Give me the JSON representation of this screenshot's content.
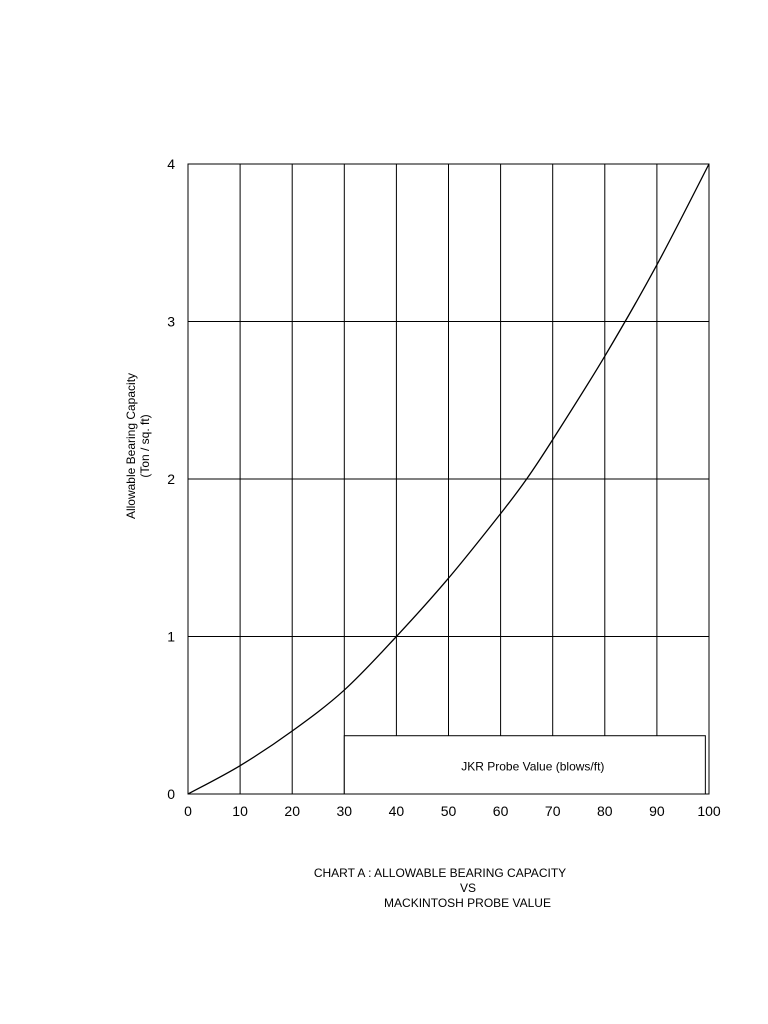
{
  "chart_data": {
    "type": "line",
    "title": "",
    "xlabel": "JKR Probe Value (blows/ft)",
    "ylabel": [
      "Allowable Bearing Capacity",
      "(Ton / sq. ft)"
    ],
    "xlim": [
      0,
      100
    ],
    "ylim": [
      0,
      4
    ],
    "x_ticks": [
      "0",
      "10",
      "20",
      "30",
      "40",
      "50",
      "60",
      "70",
      "80",
      "90",
      "100"
    ],
    "y_ticks": [
      "0",
      "1",
      "2",
      "3",
      "4"
    ],
    "grid": true,
    "series": [
      {
        "x": [
          0,
          10,
          20,
          30,
          40,
          50,
          60,
          65,
          70,
          80,
          90,
          100
        ],
        "y": [
          0,
          0.18,
          0.4,
          0.66,
          1.0,
          1.37,
          1.78,
          2.0,
          2.25,
          2.78,
          3.36,
          4.0
        ]
      }
    ]
  },
  "caption": {
    "line1": "CHART A : ALLOWABLE BEARING CAPACITY",
    "line2": "VS",
    "line3": "MACKINTOSH PROBE VALUE"
  }
}
